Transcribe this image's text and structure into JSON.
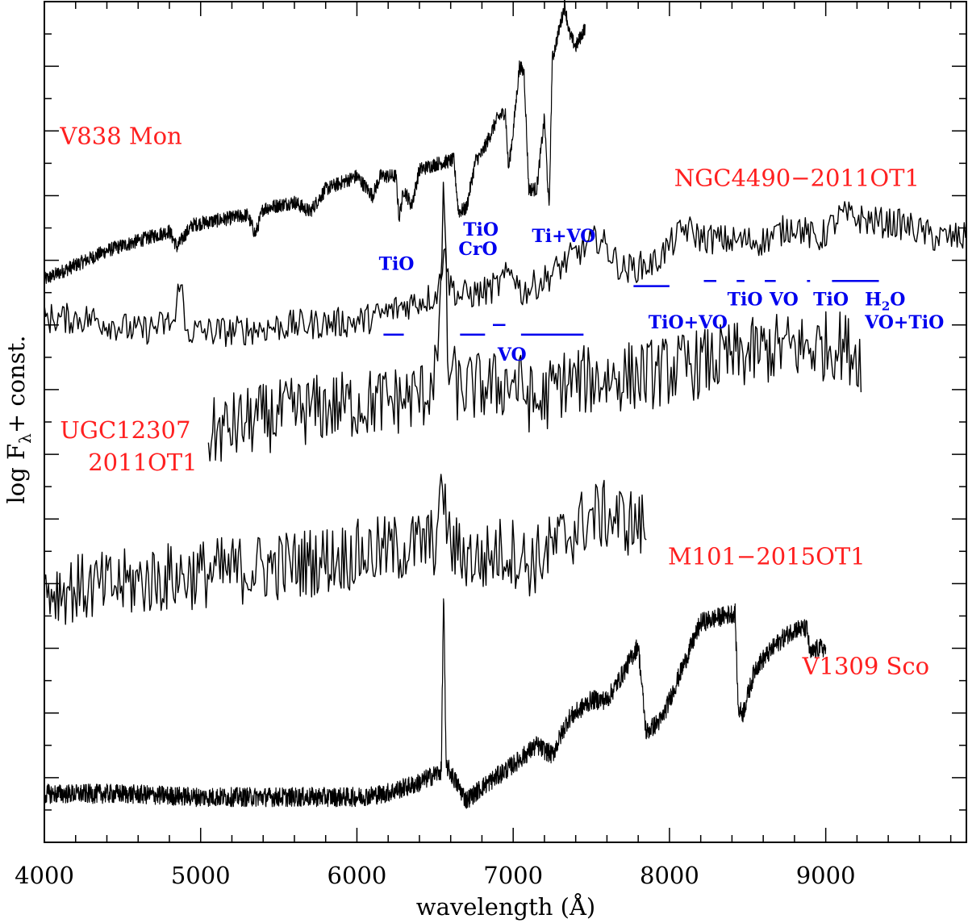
{
  "chart_data": {
    "type": "line",
    "xlabel": "wavelength (Å)",
    "ylabel": "log F",
    "ylabel_sub": "λ",
    "ylabel_suffix": "+ const.",
    "xlim": [
      4000,
      9900
    ],
    "ylim": [
      0,
      13
    ],
    "xticks": [
      4000,
      5000,
      6000,
      7000,
      8000,
      9000
    ],
    "yticks_shown": false,
    "label_color": "#ff2020",
    "annotation_color": "#0000ee",
    "series": [
      {
        "name": "V838 Mon",
        "style": "dense",
        "noise": 0.11,
        "points": [
          [
            4000,
            8.7
          ],
          [
            4400,
            9.15
          ],
          [
            4800,
            9.45
          ],
          [
            4850,
            9.2
          ],
          [
            4900,
            9.4
          ],
          [
            4950,
            9.55
          ],
          [
            5300,
            9.7
          ],
          [
            5350,
            9.4
          ],
          [
            5400,
            9.8
          ],
          [
            5600,
            9.9
          ],
          [
            5700,
            9.75
          ],
          [
            5800,
            10.1
          ],
          [
            6000,
            10.3
          ],
          [
            6100,
            10.0
          ],
          [
            6150,
            10.3
          ],
          [
            6250,
            10.3
          ],
          [
            6270,
            9.65
          ],
          [
            6300,
            10.1
          ],
          [
            6350,
            9.85
          ],
          [
            6400,
            10.4
          ],
          [
            6520,
            10.5
          ],
          [
            6530,
            10.5
          ],
          [
            6620,
            10.55
          ],
          [
            6650,
            9.75
          ],
          [
            6700,
            9.8
          ],
          [
            6760,
            10.55
          ],
          [
            6800,
            10.65
          ],
          [
            6900,
            11.2
          ],
          [
            6950,
            11.3
          ],
          [
            6970,
            10.4
          ],
          [
            7000,
            11.0
          ],
          [
            7040,
            12.0
          ],
          [
            7070,
            11.9
          ],
          [
            7100,
            10.1
          ],
          [
            7150,
            10.1
          ],
          [
            7200,
            11.2
          ],
          [
            7230,
            9.75
          ],
          [
            7250,
            12.1
          ],
          [
            7330,
            12.95
          ],
          [
            7360,
            12.5
          ],
          [
            7400,
            12.3
          ],
          [
            7460,
            12.6
          ]
        ]
      },
      {
        "name": "NGC4490-2011OT1",
        "style": "jagged",
        "noise": 0.24,
        "points": [
          [
            4000,
            8.1
          ],
          [
            4300,
            8.1
          ],
          [
            4600,
            7.9
          ],
          [
            4840,
            8.05
          ],
          [
            4870,
            8.9
          ],
          [
            4900,
            7.9
          ],
          [
            5200,
            7.9
          ],
          [
            5600,
            8.0
          ],
          [
            6000,
            8.05
          ],
          [
            6150,
            8.15
          ],
          [
            6300,
            8.3
          ],
          [
            6500,
            8.45
          ],
          [
            6540,
            8.7
          ],
          [
            6560,
            9.5
          ],
          [
            6580,
            8.7
          ],
          [
            6650,
            8.45
          ],
          [
            6800,
            8.5
          ],
          [
            6900,
            8.6
          ],
          [
            7000,
            8.85
          ],
          [
            7050,
            8.5
          ],
          [
            7200,
            8.7
          ],
          [
            7400,
            9.1
          ],
          [
            7550,
            9.35
          ],
          [
            7700,
            8.85
          ],
          [
            7900,
            8.95
          ],
          [
            8100,
            9.5
          ],
          [
            8200,
            9.35
          ],
          [
            8400,
            9.3
          ],
          [
            8600,
            9.3
          ],
          [
            8800,
            9.55
          ],
          [
            8950,
            9.3
          ],
          [
            9100,
            9.7
          ],
          [
            9300,
            9.6
          ],
          [
            9500,
            9.55
          ],
          [
            9700,
            9.35
          ],
          [
            9900,
            9.35
          ]
        ]
      },
      {
        "name": "UGC12307 2011OT1",
        "style": "jagged",
        "noise": 0.55,
        "points": [
          [
            5050,
            6.3
          ],
          [
            5300,
            6.5
          ],
          [
            5600,
            6.65
          ],
          [
            5900,
            6.75
          ],
          [
            6100,
            6.8
          ],
          [
            6300,
            6.85
          ],
          [
            6450,
            6.95
          ],
          [
            6530,
            7.6
          ],
          [
            6555,
            10.6
          ],
          [
            6580,
            7.4
          ],
          [
            6650,
            7.0
          ],
          [
            6800,
            7.05
          ],
          [
            6900,
            7.05
          ],
          [
            7000,
            7.15
          ],
          [
            7150,
            6.75
          ],
          [
            7300,
            7.1
          ],
          [
            7500,
            7.15
          ],
          [
            7700,
            7.2
          ],
          [
            7900,
            7.25
          ],
          [
            8100,
            7.35
          ],
          [
            8300,
            7.45
          ],
          [
            8500,
            7.55
          ],
          [
            8700,
            7.65
          ],
          [
            8900,
            7.65
          ],
          [
            9100,
            7.7
          ],
          [
            9230,
            7.5
          ]
        ]
      },
      {
        "name": "M101-2015OT1",
        "style": "jagged",
        "noise": 0.55,
        "points": [
          [
            4000,
            3.9
          ],
          [
            4400,
            3.95
          ],
          [
            4800,
            4.1
          ],
          [
            5200,
            4.2
          ],
          [
            5600,
            4.3
          ],
          [
            6000,
            4.45
          ],
          [
            6300,
            4.55
          ],
          [
            6500,
            4.65
          ],
          [
            6540,
            5.2
          ],
          [
            6550,
            5.9
          ],
          [
            6560,
            5.2
          ],
          [
            6600,
            4.55
          ],
          [
            6800,
            4.35
          ],
          [
            6900,
            4.5
          ],
          [
            7000,
            4.5
          ],
          [
            7100,
            4.3
          ],
          [
            7250,
            4.55
          ],
          [
            7400,
            4.85
          ],
          [
            7500,
            5.05
          ],
          [
            7600,
            5.05
          ],
          [
            7750,
            4.95
          ],
          [
            7860,
            4.85
          ]
        ]
      },
      {
        "name": "V1309 Sco",
        "style": "dense",
        "noise": 0.15,
        "points": [
          [
            4000,
            0.75
          ],
          [
            4500,
            0.75
          ],
          [
            5000,
            0.7
          ],
          [
            5500,
            0.7
          ],
          [
            6000,
            0.7
          ],
          [
            6170,
            0.75
          ],
          [
            6380,
            0.9
          ],
          [
            6540,
            1.1
          ],
          [
            6555,
            3.95
          ],
          [
            6570,
            1.2
          ],
          [
            6700,
            0.65
          ],
          [
            6800,
            0.85
          ],
          [
            7000,
            1.2
          ],
          [
            7150,
            1.5
          ],
          [
            7250,
            1.35
          ],
          [
            7350,
            1.9
          ],
          [
            7500,
            2.2
          ],
          [
            7600,
            2.2
          ],
          [
            7700,
            2.6
          ],
          [
            7800,
            3.05
          ],
          [
            7850,
            1.7
          ],
          [
            7950,
            1.9
          ],
          [
            8050,
            2.5
          ],
          [
            8200,
            3.4
          ],
          [
            8420,
            3.55
          ],
          [
            8440,
            2.05
          ],
          [
            8470,
            2.0
          ],
          [
            8550,
            2.7
          ],
          [
            8700,
            3.1
          ],
          [
            8800,
            3.3
          ],
          [
            8880,
            3.3
          ],
          [
            8900,
            2.9
          ],
          [
            8950,
            3.0
          ],
          [
            9000,
            3.0
          ]
        ]
      }
    ],
    "object_labels": [
      {
        "text": "V838 Mon",
        "wl": 4100,
        "y": 10.8
      },
      {
        "text": "NGC4490−2011OT1",
        "wl": 8030,
        "y": 10.15
      },
      {
        "text": "UGC12307",
        "wl": 4100,
        "y": 6.25
      },
      {
        "text": "2011OT1",
        "wl": 4280,
        "y": 5.75
      },
      {
        "text": "M101−2015OT1",
        "wl": 7990,
        "y": 4.3
      },
      {
        "text": "V1309 Sco",
        "wl": 8850,
        "y": 2.6
      }
    ],
    "band_labels": [
      {
        "text": "TiO",
        "wl": 6140,
        "y": 8.85
      },
      {
        "text": "TiO",
        "wl": 6680,
        "y": 9.38
      },
      {
        "text": "CrO",
        "wl": 6650,
        "y": 9.08
      },
      {
        "text": "Ti+VO",
        "wl": 7120,
        "y": 9.28
      },
      {
        "text": "VO",
        "wl": 6900,
        "y": 7.45
      },
      {
        "text": "TiO+VO",
        "wl": 7865,
        "y": 7.95
      },
      {
        "text": "TiO",
        "wl": 8370,
        "y": 8.3
      },
      {
        "text": "VO",
        "wl": 8640,
        "y": 8.3
      },
      {
        "text": "TiO",
        "wl": 8920,
        "y": 8.3
      },
      {
        "text": "H",
        "wl": 9250,
        "y": 8.3,
        "sub": "2",
        "suffix": "O"
      },
      {
        "text": "VO+TiO",
        "wl": 9250,
        "y": 7.95
      }
    ],
    "band_bars": [
      {
        "from": 6170,
        "to": 6300,
        "y": 7.85
      },
      {
        "from": 6660,
        "to": 6820,
        "y": 7.85
      },
      {
        "from": 6870,
        "to": 6950,
        "y": 8.0
      },
      {
        "from": 7050,
        "to": 7450,
        "y": 7.85
      },
      {
        "from": 7770,
        "to": 8000,
        "y": 8.6
      },
      {
        "from": 8220,
        "to": 8300,
        "y": 8.68
      },
      {
        "from": 8430,
        "to": 8480,
        "y": 8.68
      },
      {
        "from": 8610,
        "to": 8680,
        "y": 8.68
      },
      {
        "from": 8880,
        "to": 8900,
        "y": 8.68
      },
      {
        "from": 9040,
        "to": 9340,
        "y": 8.68
      }
    ]
  }
}
